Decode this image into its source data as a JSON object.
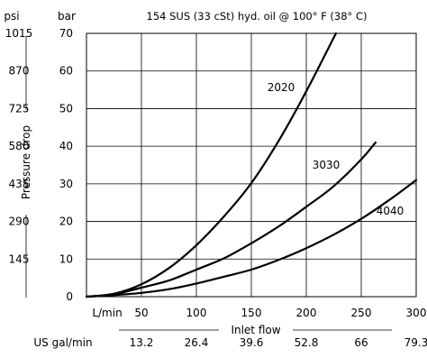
{
  "chart_data": {
    "type": "line",
    "title": "154 SUS (33 cSt) hyd. oil @ 100° F (38° C)",
    "xlabel": "Inlet flow",
    "ylabel": "Pressure drop",
    "x_unit_primary": "L/min",
    "x_unit_secondary": "US gal/min",
    "y_unit_primary": "bar",
    "y_unit_secondary": "psi",
    "xlim": [
      0,
      300
    ],
    "ylim": [
      0,
      70
    ],
    "x_ticks": [
      50,
      100,
      150,
      200,
      250,
      300
    ],
    "x_ticks_secondary": [
      "13.2",
      "26.4",
      "39.6",
      "52.8",
      "66",
      "79.3"
    ],
    "y_ticks": [
      0,
      10,
      20,
      30,
      40,
      50,
      60,
      70
    ],
    "y_ticks_secondary": [
      "145",
      "290",
      "435",
      "580",
      "725",
      "870",
      "1015"
    ],
    "grid": true,
    "series": [
      {
        "name": "2020",
        "x": [
          0,
          25,
          50,
          75,
          100,
          125,
          150,
          175,
          200,
          227
        ],
        "y": [
          0,
          0.8,
          3.3,
          7.6,
          13.7,
          21.3,
          30.2,
          41.5,
          54.6,
          70
        ]
      },
      {
        "name": "3030",
        "x": [
          0,
          25,
          50,
          75,
          100,
          125,
          150,
          175,
          200,
          225,
          250,
          263
        ],
        "y": [
          0,
          0.6,
          2.4,
          4.3,
          7.2,
          10.2,
          14.2,
          18.7,
          23.9,
          29.4,
          36.5,
          41
        ]
      },
      {
        "name": "4040",
        "x": [
          0,
          25,
          50,
          75,
          100,
          125,
          150,
          175,
          200,
          225,
          250,
          275,
          300
        ],
        "y": [
          0,
          0.4,
          1.0,
          2.0,
          3.5,
          5.3,
          7.2,
          9.8,
          12.9,
          16.5,
          20.7,
          25.6,
          31
        ]
      }
    ]
  }
}
